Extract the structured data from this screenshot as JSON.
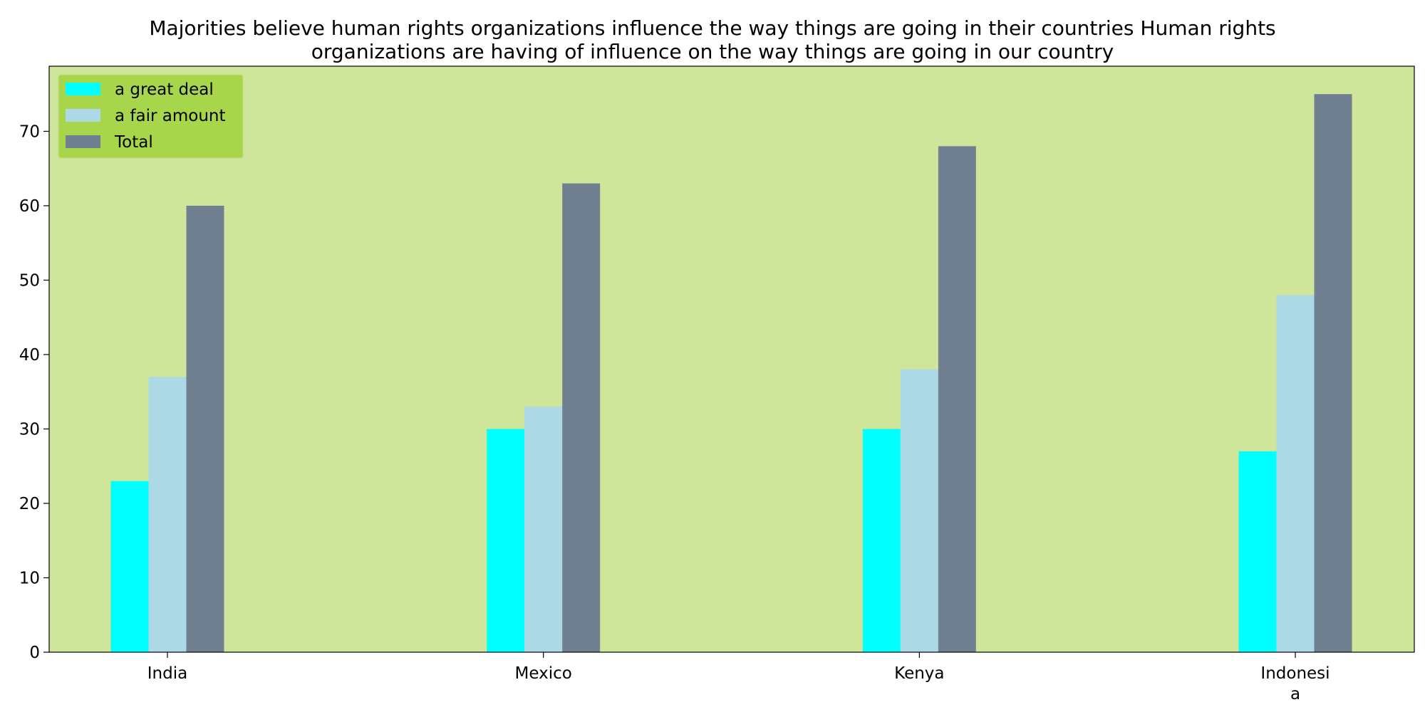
{
  "chart_data": {
    "type": "bar",
    "title": "Majorities believe human rights organizations influence the way things are going in their countries Human rights organizations are having of influence on the way things are going in our country",
    "title_lines": [
      "Majorities believe human rights organizations influence the way things are going in their countries Human rights",
      "organizations are having of influence on the way things are going in our country"
    ],
    "categories": [
      "India",
      "Mexico",
      "Kenya",
      "Indonesia"
    ],
    "category_label_lines": [
      [
        "India"
      ],
      [
        "Mexico"
      ],
      [
        "Kenya"
      ],
      [
        "Indonesi",
        "a"
      ]
    ],
    "series": [
      {
        "name": "a great deal",
        "color": "#00ffff",
        "values": [
          23,
          30,
          30,
          27
        ]
      },
      {
        "name": "a fair amount",
        "color": "#add8e6",
        "values": [
          37,
          33,
          38,
          48
        ]
      },
      {
        "name": "Total",
        "color": "#708090",
        "values": [
          60,
          63,
          68,
          75
        ]
      }
    ],
    "xlabel": "",
    "ylabel": "",
    "ylim": [
      0,
      78.75
    ],
    "yticks": [
      0,
      10,
      20,
      30,
      40,
      50,
      60,
      70
    ],
    "grid": false,
    "legend_placement": "top-left",
    "plot_background": "#cfe69a",
    "legend_background": "#a7d64b"
  }
}
